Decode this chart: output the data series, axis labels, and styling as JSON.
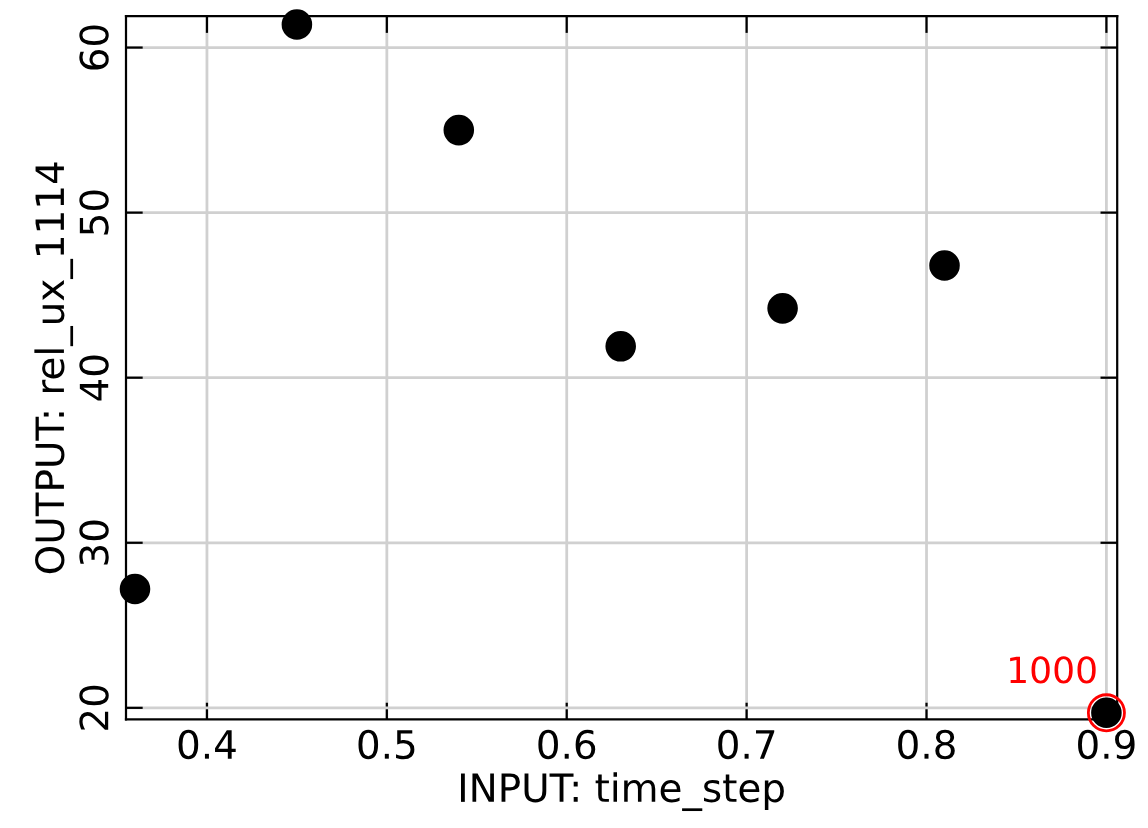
{
  "chart_data": {
    "type": "scatter",
    "xlabel": "INPUT: time_step",
    "ylabel": "OUTPUT: rel_ux_1114",
    "x": [
      0.36,
      0.45,
      0.54,
      0.63,
      0.72,
      0.81,
      0.9
    ],
    "values": [
      27.2,
      61.4,
      55.0,
      41.9,
      44.2,
      46.8,
      19.7
    ],
    "color": "#000000",
    "marker": "circle",
    "xlim": [
      0.355,
      0.906
    ],
    "ylim": [
      19.3,
      61.9
    ],
    "xticks": [
      0.4,
      0.5,
      0.6,
      0.7,
      0.8,
      0.9
    ],
    "yticks": [
      20,
      30,
      40,
      50,
      60
    ],
    "grid": true,
    "annotations": [
      {
        "text": "1000",
        "x": 0.9,
        "y": 19.7
      }
    ]
  }
}
